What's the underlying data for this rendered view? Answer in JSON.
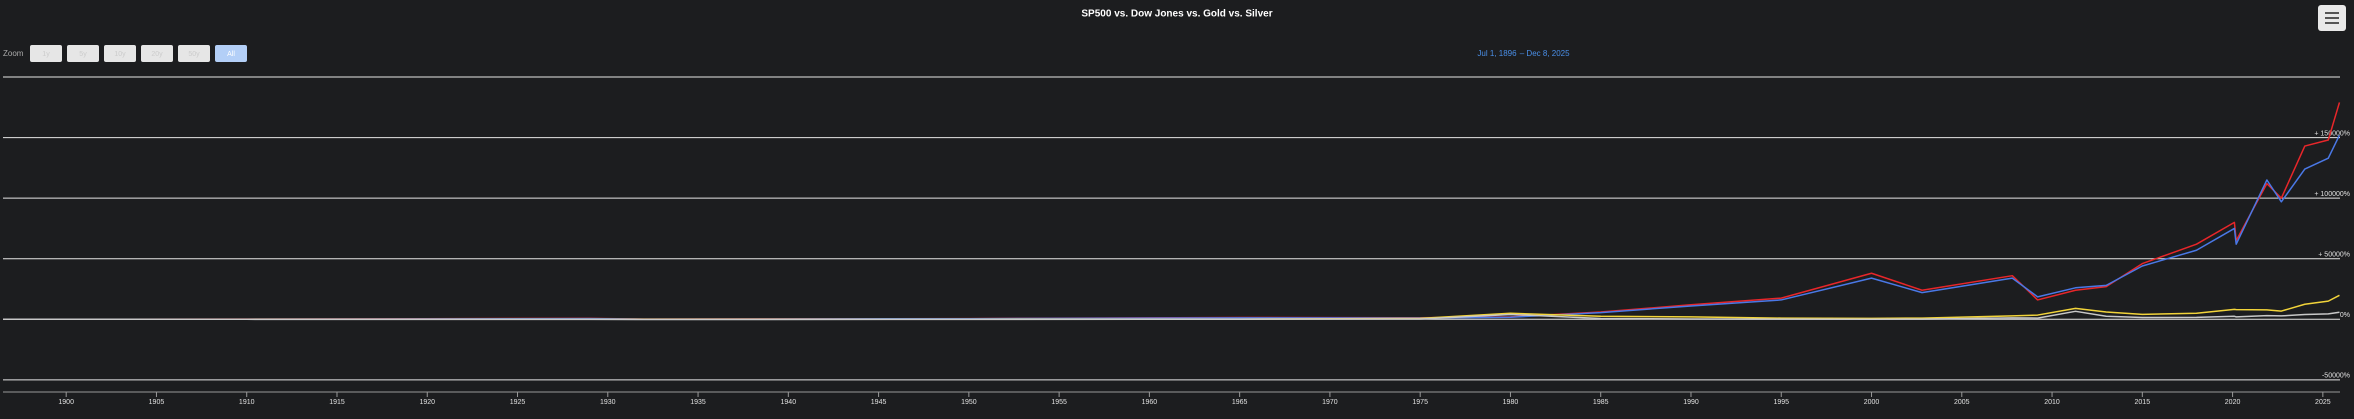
{
  "chart_data": {
    "type": "line",
    "title": "SP500 vs. Dow Jones vs. Gold vs. Silver",
    "zoom": {
      "label": "Zoom",
      "buttons": [
        "1y",
        "5y",
        "10y",
        "20y",
        "50y",
        "All"
      ],
      "selected": 5
    },
    "range": {
      "from": "Jul 1, 1896",
      "separator": "–",
      "to": "Dec 8, 2025"
    },
    "x": [
      1896.5,
      1910,
      1929,
      1932,
      1950,
      1965,
      1975,
      1980,
      1985,
      1990,
      1995,
      2000,
      2002.8,
      2007.8,
      2009.2,
      2011.3,
      2013,
      2015,
      2018,
      2020.1,
      2020.2,
      2021.9,
      2022.7,
      2024,
      2025.3,
      2025.92
    ],
    "series": [
      {
        "color": "#e8262a",
        "values": [
          0,
          150,
          800,
          200,
          600,
          1500,
          1300,
          2000,
          6000,
          12000,
          17500,
          38000,
          24000,
          36000,
          16000,
          24000,
          27000,
          46000,
          62000,
          80000,
          65000,
          112000,
          100000,
          143000,
          148000,
          179000
        ]
      },
      {
        "color": "#4a78e6",
        "values": [
          0,
          100,
          600,
          150,
          500,
          1200,
          1100,
          1700,
          5500,
          11000,
          16000,
          34000,
          22000,
          34000,
          18500,
          26000,
          28000,
          44000,
          57000,
          75000,
          62000,
          115000,
          97000,
          124000,
          133000,
          152000
        ]
      },
      {
        "color": "#f2d43a",
        "values": [
          0,
          0,
          0,
          40,
          100,
          120,
          800,
          5000,
          2500,
          2000,
          1000,
          800,
          1000,
          2800,
          3500,
          9000,
          6000,
          4100,
          5000,
          8200,
          8000,
          7800,
          6800,
          12400,
          15000,
          19800
        ]
      },
      {
        "color": "#c8c8c8",
        "values": [
          0,
          0,
          -100,
          -150,
          -50,
          100,
          300,
          4000,
          700,
          300,
          200,
          100,
          200,
          1200,
          1000,
          6600,
          2500,
          1500,
          1600,
          2500,
          2000,
          3000,
          2800,
          4000,
          4500,
          5800
        ]
      }
    ],
    "xlim": [
      1896.5,
      2025.95
    ],
    "xticks": [
      1900,
      1905,
      1910,
      1915,
      1920,
      1925,
      1930,
      1935,
      1940,
      1945,
      1950,
      1955,
      1960,
      1965,
      1970,
      1975,
      1980,
      1985,
      1990,
      1995,
      2000,
      2005,
      2010,
      2015,
      2020,
      2025
    ],
    "ylim": [
      -60000,
      200000
    ],
    "yticks": [
      {
        "value": -50000,
        "label": "-50000%"
      },
      {
        "value": 0,
        "label": "0%"
      },
      {
        "value": 50000,
        "label": "+ 50000%"
      },
      {
        "value": 100000,
        "label": "+ 100000%"
      },
      {
        "value": 150000,
        "label": "+ 150000%"
      }
    ],
    "grid": true
  }
}
